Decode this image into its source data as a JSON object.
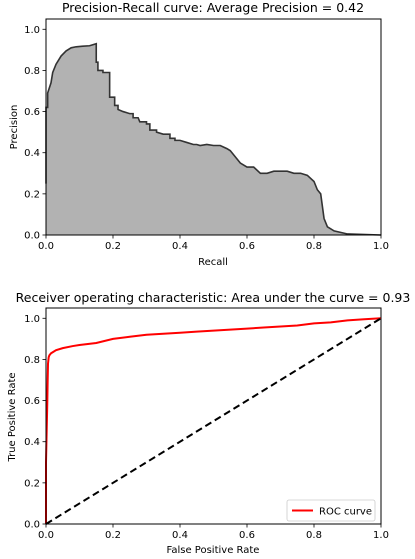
{
  "chart_data": [
    {
      "type": "area",
      "title": "Precision-Recall curve: Average Precision =     0.42",
      "xlabel": "Recall",
      "ylabel": "Precision",
      "xlim": [
        0.0,
        1.0
      ],
      "ylim": [
        0.0,
        1.05
      ],
      "xticks": [
        "0.0",
        "0.2",
        "0.4",
        "0.6",
        "0.8",
        "1.0"
      ],
      "yticks": [
        "0.0",
        "0.2",
        "0.4",
        "0.6",
        "0.8",
        "1.0"
      ],
      "grid": false,
      "colors": {
        "fill": "#b2b2b2",
        "line": "#333333"
      },
      "series": [
        {
          "x": [
            0.0,
            0.0,
            0.005,
            0.005,
            0.015,
            0.02,
            0.03,
            0.045,
            0.06,
            0.075,
            0.09,
            0.11,
            0.13,
            0.15,
            0.15,
            0.155,
            0.155,
            0.17,
            0.17,
            0.19,
            0.19,
            0.205,
            0.205,
            0.215,
            0.215,
            0.23,
            0.25,
            0.26,
            0.26,
            0.275,
            0.28,
            0.3,
            0.3,
            0.31,
            0.31,
            0.33,
            0.33,
            0.35,
            0.37,
            0.37,
            0.385,
            0.385,
            0.4,
            0.42,
            0.44,
            0.45,
            0.46,
            0.48,
            0.5,
            0.52,
            0.54,
            0.55,
            0.56,
            0.57,
            0.58,
            0.59,
            0.6,
            0.62,
            0.64,
            0.66,
            0.68,
            0.7,
            0.72,
            0.74,
            0.76,
            0.78,
            0.8,
            0.81,
            0.82,
            0.83,
            0.84,
            0.86,
            0.9,
            1.0
          ],
          "values": [
            0.25,
            0.62,
            0.62,
            0.69,
            0.74,
            0.79,
            0.83,
            0.87,
            0.895,
            0.91,
            0.915,
            0.918,
            0.92,
            0.93,
            0.84,
            0.84,
            0.8,
            0.8,
            0.79,
            0.79,
            0.67,
            0.67,
            0.63,
            0.63,
            0.61,
            0.6,
            0.59,
            0.59,
            0.57,
            0.57,
            0.55,
            0.55,
            0.54,
            0.54,
            0.51,
            0.51,
            0.5,
            0.49,
            0.49,
            0.47,
            0.47,
            0.46,
            0.46,
            0.45,
            0.44,
            0.44,
            0.435,
            0.44,
            0.435,
            0.435,
            0.42,
            0.41,
            0.39,
            0.37,
            0.35,
            0.34,
            0.33,
            0.33,
            0.3,
            0.3,
            0.31,
            0.31,
            0.31,
            0.3,
            0.3,
            0.29,
            0.26,
            0.22,
            0.2,
            0.08,
            0.04,
            0.02,
            0.005,
            0.0
          ]
        }
      ]
    },
    {
      "type": "line",
      "title": "Receiver operating characteristic:     Area under the curve = 0.93",
      "xlabel": "False Positive Rate",
      "ylabel": "True Positive Rate",
      "xlim": [
        0.0,
        1.0
      ],
      "ylim": [
        0.0,
        1.05
      ],
      "xticks": [
        "0.0",
        "0.2",
        "0.4",
        "0.6",
        "0.8",
        "1.0"
      ],
      "yticks": [
        "0.0",
        "0.2",
        "0.4",
        "0.6",
        "0.8",
        "1.0"
      ],
      "grid": false,
      "legend": {
        "location": "lower-right",
        "entries": [
          "ROC curve"
        ]
      },
      "series": [
        {
          "name": "ROC curve",
          "color": "#ff0000",
          "style": "solid",
          "x": [
            0.0,
            0.0,
            0.002,
            0.004,
            0.005,
            0.006,
            0.008,
            0.01,
            0.015,
            0.02,
            0.03,
            0.05,
            0.08,
            0.1,
            0.15,
            0.2,
            0.25,
            0.3,
            0.35,
            0.4,
            0.45,
            0.5,
            0.55,
            0.6,
            0.65,
            0.7,
            0.75,
            0.8,
            0.85,
            0.9,
            0.95,
            1.0
          ],
          "values": [
            0.0,
            0.3,
            0.45,
            0.6,
            0.7,
            0.78,
            0.81,
            0.82,
            0.83,
            0.835,
            0.845,
            0.855,
            0.865,
            0.87,
            0.88,
            0.9,
            0.91,
            0.92,
            0.925,
            0.93,
            0.935,
            0.94,
            0.945,
            0.95,
            0.955,
            0.96,
            0.965,
            0.975,
            0.98,
            0.99,
            0.995,
            1.0
          ]
        },
        {
          "color": "#000000",
          "style": "dashed",
          "x": [
            0.0,
            1.0
          ],
          "values": [
            0.0,
            1.0
          ]
        }
      ]
    }
  ]
}
